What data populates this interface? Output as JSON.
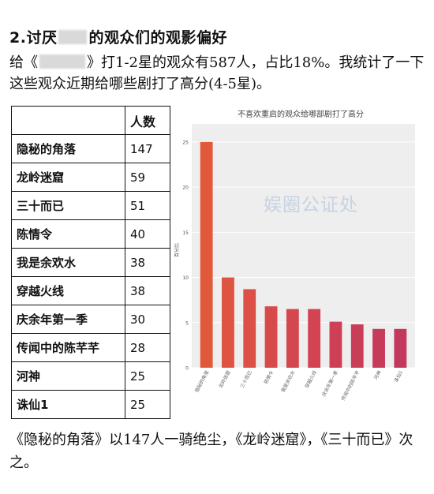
{
  "heading": {
    "prefix": "2.讨厌",
    "suffix": "的观众们的观影偏好"
  },
  "intro": {
    "prefix": "给《",
    "middle": "》打1-2星的观众有587人，占比18%。我统计了一下这些观众近期给哪些剧打了高分(4-5星)。"
  },
  "table": {
    "headers": [
      "",
      "人数"
    ],
    "rows": [
      {
        "name": "隐秘的角落",
        "count": "147"
      },
      {
        "name": "龙岭迷窟",
        "count": "59"
      },
      {
        "name": "三十而已",
        "count": "51"
      },
      {
        "name": "陈情令",
        "count": "40"
      },
      {
        "name": "我是余欢水",
        "count": "38"
      },
      {
        "name": "穿越火线",
        "count": "38"
      },
      {
        "name": "庆余年第一季",
        "count": "30"
      },
      {
        "name": "传闻中的陈芊芊",
        "count": "28"
      },
      {
        "name": "河神",
        "count": "25"
      },
      {
        "name": "诛仙1",
        "count": "25"
      }
    ]
  },
  "watermark": "娱圈公证处",
  "outro": "《隐秘的角落》以147人一骑绝尘，《龙岭迷窟》，《三十而已》次之。",
  "chart_data": {
    "type": "bar",
    "title": "不喜欢重启的观众给哪部剧打了高分",
    "ylabel": "百分比",
    "xlabel": "",
    "categories": [
      "隐秘的角落",
      "龙岭迷窟",
      "三十而已",
      "陈情令",
      "我是余欢水",
      "穿越火线",
      "庆余年第一季",
      "传闻中的陈芊芊",
      "河神",
      "诛仙1"
    ],
    "values": [
      25.0,
      10.0,
      8.7,
      6.8,
      6.5,
      6.5,
      5.1,
      4.8,
      4.3,
      4.3
    ],
    "yticks": [
      "0",
      "5",
      "10",
      "15",
      "20",
      "25"
    ],
    "ylim": [
      0,
      27
    ],
    "colors": [
      "#e05a3a",
      "#de5440",
      "#dc5045",
      "#d84a4a",
      "#d5474e",
      "#d24452",
      "#cd4055",
      "#c93d58",
      "#c63a5a",
      "#c3385c"
    ],
    "grid": true,
    "background": "#eeeeee"
  }
}
